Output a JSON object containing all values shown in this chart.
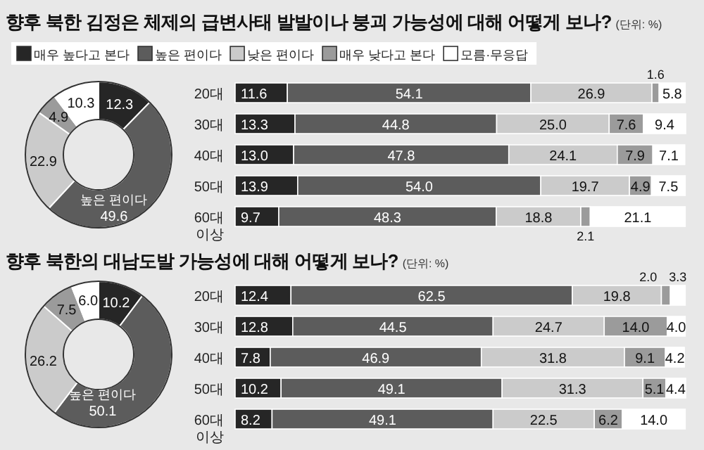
{
  "chart_data": [
    {
      "type": "donut",
      "legend": "top",
      "categories": [
        "매우 높다고 본다",
        "높은 편이다",
        "낮은 편이다",
        "매우 낮다고 본다",
        "모름·무응답"
      ],
      "values": [
        12.3,
        49.6,
        22.9,
        4.9,
        10.3
      ],
      "value_labels": [
        "12.3",
        "49.6",
        "22.9",
        "4.9",
        "10.3"
      ],
      "colors": [
        "#262626",
        "#5c5c5c",
        "#cbcbcb",
        "#9b9b9b",
        "#ffffff"
      ],
      "annotations": [
        {
          "text": "높은 편이다",
          "x": "높은 편이다"
        }
      ]
    },
    {
      "type": "bar",
      "orientation": "horizontal",
      "stacked": true,
      "title": "향후 북한 김정은 체제의 급변사태 발발이나 붕괴 가능성에 대해 어떻게 보나?",
      "subtitle": "(단위: %)",
      "categories": [
        "20대",
        "30대",
        "40대",
        "50대",
        "60대 이상"
      ],
      "series": [
        {
          "color": "#262626",
          "values": [
            11.6,
            13.3,
            13.0,
            13.9,
            9.7
          ],
          "value_labels": [
            "11.6",
            "13.3",
            "13.0",
            "13.9",
            "9.7"
          ]
        },
        {
          "color": "#5c5c5c",
          "values": [
            54.1,
            44.8,
            47.8,
            54.0,
            48.3
          ],
          "value_labels": [
            "54.1",
            "44.8",
            "47.8",
            "54.0",
            "48.3"
          ]
        },
        {
          "color": "#cbcbcb",
          "values": [
            26.9,
            25.0,
            24.1,
            19.7,
            18.8
          ],
          "value_labels": [
            "26.9",
            "25.0",
            "24.1",
            "19.7",
            "18.8"
          ]
        },
        {
          "color": "#9b9b9b",
          "values": [
            1.6,
            7.6,
            7.9,
            4.9,
            2.1
          ],
          "value_labels": [
            "1.6",
            "7.6",
            "7.9",
            "4.9",
            "2.1"
          ]
        },
        {
          "color": "#ffffff",
          "values": [
            5.8,
            9.4,
            7.1,
            7.5,
            21.1
          ],
          "value_labels": [
            "5.8",
            "9.4",
            "7.1",
            "7.5",
            "21.1"
          ]
        }
      ]
    },
    {
      "type": "donut",
      "categories": [
        null,
        "높은 편이다",
        null,
        null,
        null
      ],
      "values": [
        10.2,
        50.1,
        26.2,
        7.5,
        6.0
      ],
      "value_labels": [
        "10.2",
        "50.1",
        "26.2",
        "7.5",
        "6.0"
      ],
      "colors": [
        "#262626",
        "#5c5c5c",
        "#cbcbcb",
        "#9b9b9b",
        "#ffffff"
      ]
    },
    {
      "type": "bar",
      "orientation": "horizontal",
      "stacked": true,
      "title": "향후 북한의 대남도발 가능성에 대해 어떻게 보나?",
      "subtitle": "(단위: %)",
      "categories": [
        "20대",
        "30대",
        "40대",
        "50대",
        "60대 이상"
      ],
      "series": [
        {
          "color": "#262626",
          "values": [
            12.4,
            12.8,
            7.8,
            10.2,
            8.2
          ],
          "value_labels": [
            "12.4",
            "12.8",
            "7.8",
            "10.2",
            "8.2"
          ]
        },
        {
          "color": "#5c5c5c",
          "values": [
            62.5,
            44.5,
            46.9,
            49.1,
            49.1
          ],
          "value_labels": [
            "62.5",
            "44.5",
            "46.9",
            "49.1",
            "49.1"
          ]
        },
        {
          "color": "#cbcbcb",
          "values": [
            19.8,
            24.7,
            31.8,
            31.3,
            22.5
          ],
          "value_labels": [
            "19.8",
            "24.7",
            "31.8",
            "31.3",
            "22.5"
          ]
        },
        {
          "color": "#9b9b9b",
          "values": [
            2.0,
            14.0,
            9.1,
            5.1,
            6.2
          ],
          "value_labels": [
            "2.0",
            "14.0",
            "9.1",
            "5.1",
            "6.2"
          ]
        },
        {
          "color": "#ffffff",
          "values": [
            3.3,
            4.0,
            4.2,
            4.4,
            14.0
          ],
          "value_labels": [
            "3.3",
            "4.0",
            "4.2",
            "4.4",
            "14.0"
          ]
        }
      ]
    }
  ]
}
